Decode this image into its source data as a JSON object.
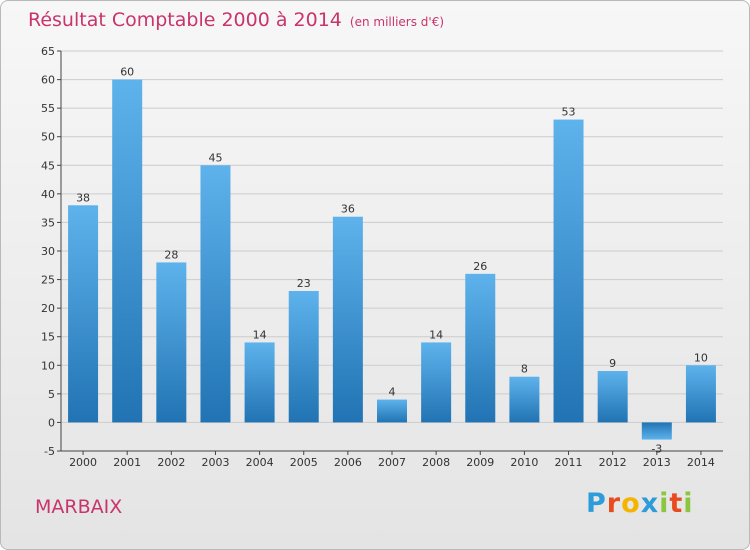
{
  "header": {
    "title": "Résultat Comptable 2000 à 2014",
    "unit": "(en milliers d'€)"
  },
  "footer": {
    "commune": "MARBAIX",
    "logo": {
      "letters": [
        "P",
        "r",
        "o",
        "x",
        "i",
        "t",
        "i"
      ],
      "colors": [
        "#2d9cd8",
        "#e84c1e",
        "#f4b400",
        "#2d9cd8",
        "#8cc63f",
        "#e84c1e",
        "#8cc63f"
      ]
    }
  },
  "colors": {
    "title": "#c8346b",
    "bar_light": "#5eb3ec",
    "bar_dark": "#2173b3",
    "grid": "#cccccc",
    "axis": "#444444"
  },
  "chart_data": {
    "type": "bar",
    "title": "Résultat Comptable 2000 à 2014",
    "xlabel": "",
    "ylabel": "",
    "categories": [
      "2000",
      "2001",
      "2002",
      "2003",
      "2004",
      "2005",
      "2006",
      "2007",
      "2008",
      "2009",
      "2010",
      "2011",
      "2012",
      "2013",
      "2014"
    ],
    "values": [
      38,
      60,
      28,
      45,
      14,
      23,
      36,
      4,
      14,
      26,
      8,
      53,
      9,
      -3,
      10
    ],
    "ylim": [
      -5,
      65
    ],
    "yticks": [
      -5,
      0,
      5,
      10,
      15,
      20,
      25,
      30,
      35,
      40,
      45,
      50,
      55,
      60,
      65
    ],
    "grid": true
  }
}
